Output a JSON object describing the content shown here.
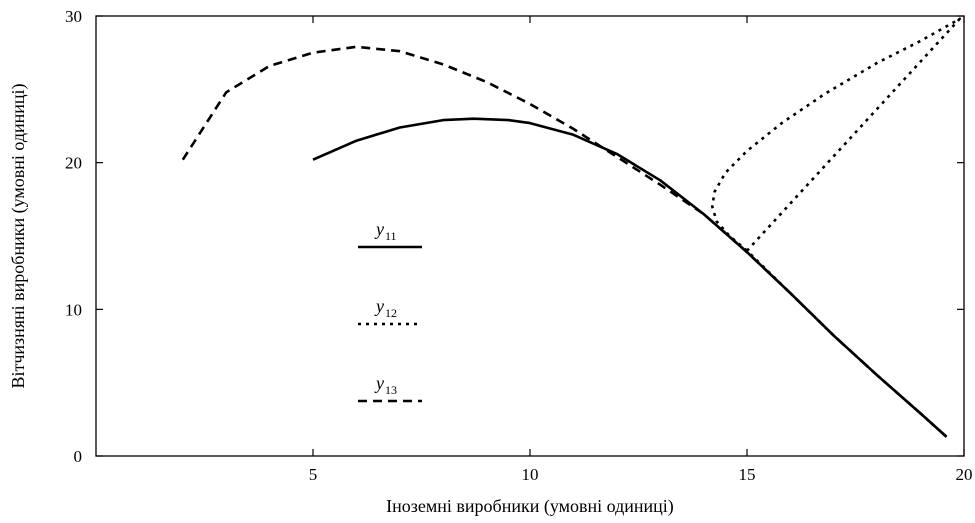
{
  "chart_data": {
    "type": "line",
    "xlabel": "Іноземні виробники (умовні одиниці)",
    "ylabel": "Вітчизняні виробники (умовні одиниці)",
    "xlim": [
      0,
      20
    ],
    "ylim": [
      0,
      30
    ],
    "x_ticks": [
      5,
      10,
      15,
      20
    ],
    "y_ticks": [
      0,
      10,
      20,
      30
    ],
    "x_tick_labels": [
      "5",
      "10",
      "15",
      "20"
    ],
    "y_tick_labels": [
      "0",
      "10",
      "20",
      "30"
    ],
    "grid": false,
    "legend_position": "inside-left",
    "series": [
      {
        "name": "y",
        "subscript": "11",
        "line_style": "solid",
        "color": "#000000",
        "points": [
          [
            5.0,
            20.2
          ],
          [
            6.0,
            21.5
          ],
          [
            7.0,
            22.4
          ],
          [
            8.0,
            22.9
          ],
          [
            8.7,
            23.0
          ],
          [
            9.5,
            22.9
          ],
          [
            10.0,
            22.7
          ],
          [
            11.0,
            21.9
          ],
          [
            12.0,
            20.6
          ],
          [
            13.0,
            18.8
          ],
          [
            14.0,
            16.5
          ],
          [
            15.0,
            13.9
          ],
          [
            16.0,
            11.1
          ],
          [
            17.0,
            8.2
          ],
          [
            18.0,
            5.5
          ],
          [
            19.0,
            2.9
          ],
          [
            19.6,
            1.3
          ]
        ]
      },
      {
        "name": "y",
        "subscript": "12",
        "line_style": "dotted",
        "color": "#000000",
        "points": [
          [
            15.0,
            14.0
          ],
          [
            14.6,
            15.0
          ],
          [
            14.3,
            16.0
          ],
          [
            14.2,
            17.0
          ],
          [
            14.25,
            18.0
          ],
          [
            14.5,
            19.3
          ],
          [
            15.0,
            20.8
          ],
          [
            15.8,
            22.7
          ],
          [
            16.8,
            24.7
          ],
          [
            18.0,
            26.8
          ],
          [
            19.0,
            28.3
          ],
          [
            19.9,
            29.8
          ],
          [
            15.0,
            14.0
          ],
          [
            16.0,
            11.1
          ],
          [
            17.0,
            8.2
          ],
          [
            18.0,
            5.5
          ],
          [
            19.0,
            2.9
          ],
          [
            19.6,
            1.3
          ]
        ]
      },
      {
        "name": "y",
        "subscript": "13",
        "line_style": "dashed",
        "color": "#000000",
        "points": [
          [
            2.0,
            20.2
          ],
          [
            3.0,
            24.8
          ],
          [
            4.0,
            26.6
          ],
          [
            5.0,
            27.5
          ],
          [
            6.0,
            27.9
          ],
          [
            7.0,
            27.6
          ],
          [
            8.0,
            26.7
          ],
          [
            9.0,
            25.5
          ],
          [
            10.0,
            24.0
          ],
          [
            11.0,
            22.3
          ],
          [
            12.0,
            20.4
          ],
          [
            13.0,
            18.5
          ],
          [
            14.0,
            16.5
          ],
          [
            15.0,
            13.9
          ],
          [
            16.0,
            11.1
          ],
          [
            17.0,
            8.2
          ],
          [
            18.0,
            5.5
          ],
          [
            19.0,
            2.9
          ],
          [
            19.6,
            1.3
          ]
        ]
      }
    ]
  }
}
